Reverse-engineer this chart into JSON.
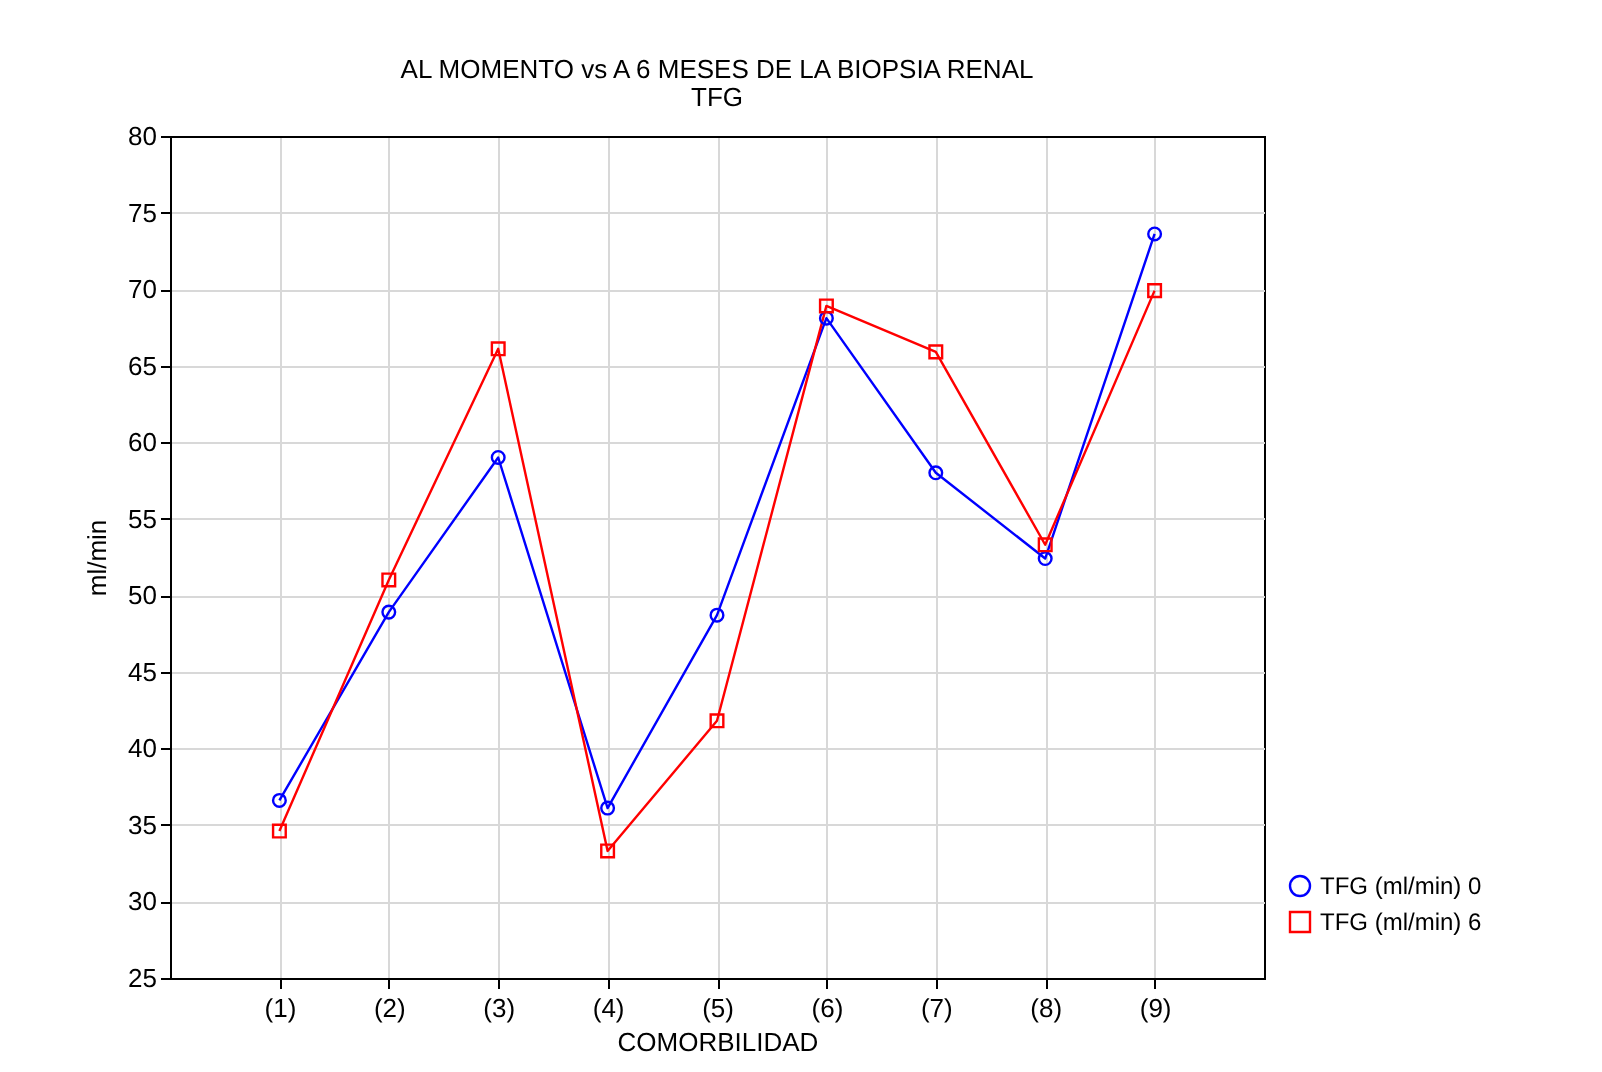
{
  "chart_data": {
    "type": "line",
    "title": "AL MOMENTO vs A 6 MESES DE LA BIOPSIA RENAL",
    "subtitle": "TFG",
    "xlabel": "COMORBILIDAD",
    "ylabel": "ml/min",
    "categories": [
      "(1)",
      "(2)",
      "(3)",
      "(4)",
      "(5)",
      "(6)",
      "(7)",
      "(8)",
      "(9)"
    ],
    "series": [
      {
        "name": "TFG (ml/min) 0",
        "color": "#0000ff",
        "marker": "circle",
        "values": [
          36.6,
          48.9,
          59.0,
          36.1,
          48.7,
          68.1,
          58.0,
          52.4,
          73.6
        ]
      },
      {
        "name": "TFG (ml/min) 6",
        "color": "#ff0000",
        "marker": "square",
        "values": [
          34.6,
          51.0,
          66.1,
          33.3,
          41.8,
          68.9,
          65.9,
          53.3,
          69.9
        ]
      }
    ],
    "ylim": [
      25,
      80
    ],
    "yticks": [
      25,
      30,
      35,
      40,
      45,
      50,
      55,
      60,
      65,
      70,
      75,
      80
    ],
    "grid": true,
    "legend": "bottom right",
    "line_style": "solid"
  }
}
